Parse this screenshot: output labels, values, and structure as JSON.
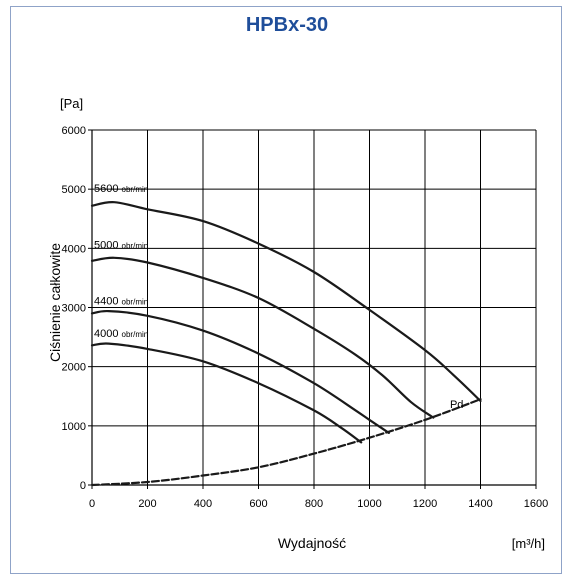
{
  "page": {
    "title": "HPBx-30"
  },
  "chart_data": {
    "type": "line",
    "title": "HPBx-30",
    "xlabel": "Wydajność",
    "xunit": "[m³/h]",
    "ylabel": "Ciśnienie całkowite",
    "yunit": "[Pa]",
    "xlim": [
      0,
      1600
    ],
    "ylim": [
      0,
      6000
    ],
    "xticks": [
      0,
      200,
      400,
      600,
      800,
      1000,
      1200,
      1400,
      1600
    ],
    "yticks": [
      0,
      1000,
      2000,
      3000,
      4000,
      5000,
      6000
    ],
    "grid": true,
    "series": [
      {
        "name": "5600 obr/min",
        "color": "#1a1a1a",
        "dashed": false,
        "points": [
          [
            0,
            4720
          ],
          [
            80,
            4780
          ],
          [
            200,
            4660
          ],
          [
            400,
            4460
          ],
          [
            600,
            4080
          ],
          [
            800,
            3600
          ],
          [
            1000,
            2960
          ],
          [
            1200,
            2280
          ],
          [
            1300,
            1870
          ],
          [
            1400,
            1420
          ]
        ]
      },
      {
        "name": "5000 obr/min",
        "color": "#1a1a1a",
        "dashed": false,
        "points": [
          [
            0,
            3790
          ],
          [
            80,
            3840
          ],
          [
            200,
            3760
          ],
          [
            400,
            3500
          ],
          [
            600,
            3160
          ],
          [
            800,
            2640
          ],
          [
            950,
            2200
          ],
          [
            1050,
            1840
          ],
          [
            1150,
            1400
          ],
          [
            1230,
            1140
          ]
        ]
      },
      {
        "name": "4400 obr/min",
        "color": "#1a1a1a",
        "dashed": false,
        "points": [
          [
            0,
            2900
          ],
          [
            60,
            2940
          ],
          [
            200,
            2860
          ],
          [
            400,
            2610
          ],
          [
            600,
            2220
          ],
          [
            800,
            1720
          ],
          [
            950,
            1260
          ],
          [
            1000,
            1100
          ],
          [
            1070,
            880
          ]
        ]
      },
      {
        "name": "4000 obr/min",
        "color": "#1a1a1a",
        "dashed": false,
        "points": [
          [
            0,
            2360
          ],
          [
            60,
            2390
          ],
          [
            200,
            2300
          ],
          [
            400,
            2090
          ],
          [
            600,
            1720
          ],
          [
            800,
            1260
          ],
          [
            900,
            960
          ],
          [
            970,
            720
          ]
        ]
      },
      {
        "name": "Pd",
        "color": "#1a1a1a",
        "dashed": true,
        "points": [
          [
            0,
            0
          ],
          [
            200,
            50
          ],
          [
            400,
            160
          ],
          [
            600,
            300
          ],
          [
            800,
            530
          ],
          [
            1000,
            800
          ],
          [
            1200,
            1100
          ],
          [
            1400,
            1450
          ]
        ]
      }
    ],
    "curve_labels": [
      {
        "rpm": "5600",
        "unit": "obr/min",
        "x": 0,
        "y": 4950
      },
      {
        "rpm": "5000",
        "unit": "obr/min",
        "x": 0,
        "y": 4000
      },
      {
        "rpm": "4400",
        "unit": "obr/min",
        "x": 0,
        "y": 3050
      },
      {
        "rpm": "4000",
        "unit": "obr/min",
        "x": 0,
        "y": 2500
      }
    ],
    "annotations": [
      {
        "text": "Pd",
        "x": 1290,
        "y": 1300
      }
    ]
  }
}
